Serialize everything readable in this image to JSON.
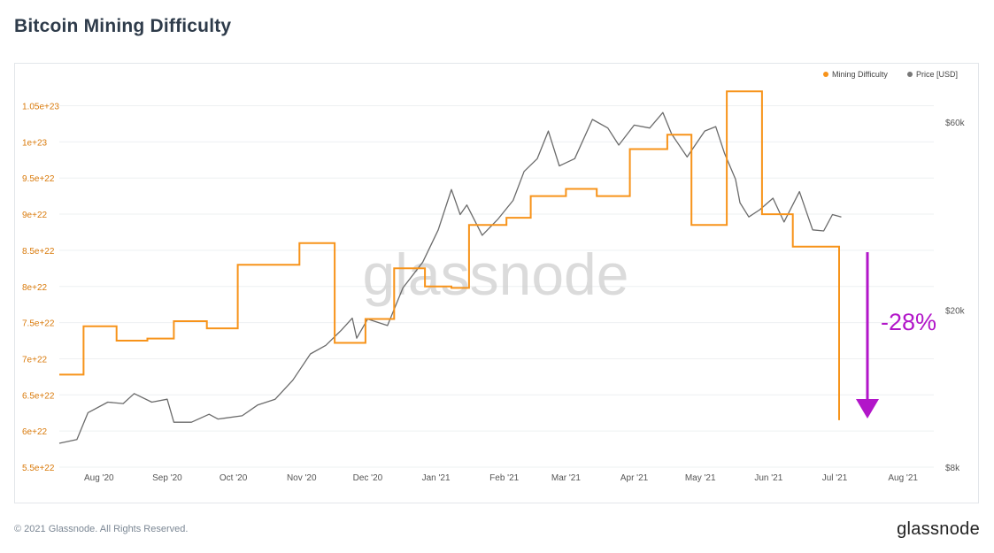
{
  "header": {
    "title": "Bitcoin Mining Difficulty"
  },
  "footer": {
    "copyright": "© 2021 Glassnode. All Rights Reserved.",
    "logo": "glassnode"
  },
  "watermark": "glassnode",
  "annotation": {
    "text": "-28%",
    "color": "#b216c9"
  },
  "colors": {
    "difficulty": "#f7931a",
    "price": "#6b6b6b",
    "left_axis": "#d97a0b",
    "right_axis": "#555555",
    "watermark": "#cfcfcf"
  },
  "chart_data": {
    "type": "line",
    "title": "Bitcoin Mining Difficulty",
    "legend": {
      "placement": "top-right",
      "entries": [
        "Mining Difficulty",
        "Price [USD]"
      ]
    },
    "x_ticks": [
      "Aug '20",
      "Sep '20",
      "Oct '20",
      "Nov '20",
      "Dec '20",
      "Jan '21",
      "Feb '21",
      "Mar '21",
      "Apr '21",
      "May '21",
      "Jun '21",
      "Jul '21",
      "Aug '21"
    ],
    "x_tick_dates": [
      "2020-08-01",
      "2020-09-01",
      "2020-10-01",
      "2020-11-01",
      "2020-12-01",
      "2021-01-01",
      "2021-02-01",
      "2021-03-01",
      "2021-04-01",
      "2021-05-01",
      "2021-06-01",
      "2021-07-01",
      "2021-08-01"
    ],
    "x_range": [
      "2020-07-14",
      "2021-08-15"
    ],
    "y_left": {
      "ticks": [
        "5.5e+22",
        "6e+22",
        "6.5e+22",
        "7e+22",
        "7.5e+22",
        "8e+22",
        "8.5e+22",
        "9e+22",
        "9.5e+22",
        "1e+23",
        "1.05e+23"
      ],
      "range": [
        5.5e+22,
        1.08e+23
      ]
    },
    "y_right": {
      "scale": "log",
      "ticks": [
        "$8k",
        "$20k",
        "$60k"
      ],
      "range": [
        8000,
        75000
      ]
    },
    "grid": true,
    "series": [
      {
        "name": "Mining Difficulty",
        "style": "step",
        "points": [
          [
            "2020-07-14",
            6.78e+22
          ],
          [
            "2020-07-25",
            7.45e+22
          ],
          [
            "2020-08-09",
            7.25e+22
          ],
          [
            "2020-08-23",
            7.28e+22
          ],
          [
            "2020-09-04",
            7.52e+22
          ],
          [
            "2020-09-19",
            7.42e+22
          ],
          [
            "2020-10-03",
            8.3e+22
          ],
          [
            "2020-10-19",
            8.3e+22
          ],
          [
            "2020-10-31",
            8.6e+22
          ],
          [
            "2020-11-16",
            7.22e+22
          ],
          [
            "2020-11-30",
            7.55e+22
          ],
          [
            "2020-12-13",
            8.25e+22
          ],
          [
            "2020-12-27",
            8e+22
          ],
          [
            "2021-01-08",
            7.98e+22
          ],
          [
            "2021-01-16",
            8.85e+22
          ],
          [
            "2021-02-02",
            8.95e+22
          ],
          [
            "2021-02-13",
            9.25e+22
          ],
          [
            "2021-03-01",
            9.35e+22
          ],
          [
            "2021-03-15",
            9.25e+22
          ],
          [
            "2021-03-30",
            9.9e+22
          ],
          [
            "2021-04-16",
            1.01e+23
          ],
          [
            "2021-04-27",
            8.85e+22
          ],
          [
            "2021-05-13",
            1.07e+23
          ],
          [
            "2021-05-29",
            9e+22
          ],
          [
            "2021-06-12",
            8.55e+22
          ],
          [
            "2021-07-03",
            6.15e+22
          ]
        ],
        "end_date": "2021-07-03"
      },
      {
        "name": "Price [USD]",
        "style": "line",
        "points": [
          [
            "2020-07-14",
            9200
          ],
          [
            "2020-07-22",
            9400
          ],
          [
            "2020-07-27",
            11000
          ],
          [
            "2020-08-05",
            11700
          ],
          [
            "2020-08-12",
            11600
          ],
          [
            "2020-08-17",
            12300
          ],
          [
            "2020-08-25",
            11700
          ],
          [
            "2020-09-01",
            11900
          ],
          [
            "2020-09-04",
            10400
          ],
          [
            "2020-09-12",
            10400
          ],
          [
            "2020-09-20",
            10900
          ],
          [
            "2020-09-24",
            10600
          ],
          [
            "2020-10-05",
            10800
          ],
          [
            "2020-10-12",
            11500
          ],
          [
            "2020-10-20",
            11900
          ],
          [
            "2020-10-28",
            13300
          ],
          [
            "2020-11-05",
            15500
          ],
          [
            "2020-11-12",
            16300
          ],
          [
            "2020-11-19",
            17800
          ],
          [
            "2020-11-24",
            19100
          ],
          [
            "2020-11-26",
            17000
          ],
          [
            "2020-12-01",
            19000
          ],
          [
            "2020-12-10",
            18300
          ],
          [
            "2020-12-17",
            22800
          ],
          [
            "2020-12-26",
            26500
          ],
          [
            "2021-01-02",
            32000
          ],
          [
            "2021-01-08",
            40500
          ],
          [
            "2021-01-12",
            35000
          ],
          [
            "2021-01-15",
            37000
          ],
          [
            "2021-01-22",
            31000
          ],
          [
            "2021-01-29",
            34000
          ],
          [
            "2021-02-05",
            38000
          ],
          [
            "2021-02-10",
            45000
          ],
          [
            "2021-02-16",
            48500
          ],
          [
            "2021-02-21",
            57000
          ],
          [
            "2021-02-26",
            46500
          ],
          [
            "2021-03-05",
            48500
          ],
          [
            "2021-03-13",
            61000
          ],
          [
            "2021-03-20",
            58000
          ],
          [
            "2021-03-25",
            52500
          ],
          [
            "2021-04-01",
            59000
          ],
          [
            "2021-04-08",
            58000
          ],
          [
            "2021-04-14",
            63500
          ],
          [
            "2021-04-18",
            56000
          ],
          [
            "2021-04-25",
            49000
          ],
          [
            "2021-05-03",
            57000
          ],
          [
            "2021-05-08",
            58500
          ],
          [
            "2021-05-12",
            50000
          ],
          [
            "2021-05-17",
            43000
          ],
          [
            "2021-05-19",
            37500
          ],
          [
            "2021-05-23",
            34500
          ],
          [
            "2021-05-28",
            36000
          ],
          [
            "2021-06-03",
            38500
          ],
          [
            "2021-06-08",
            33500
          ],
          [
            "2021-06-15",
            40000
          ],
          [
            "2021-06-21",
            32000
          ],
          [
            "2021-06-26",
            31800
          ],
          [
            "2021-06-30",
            35000
          ],
          [
            "2021-07-04",
            34500
          ]
        ]
      }
    ]
  }
}
